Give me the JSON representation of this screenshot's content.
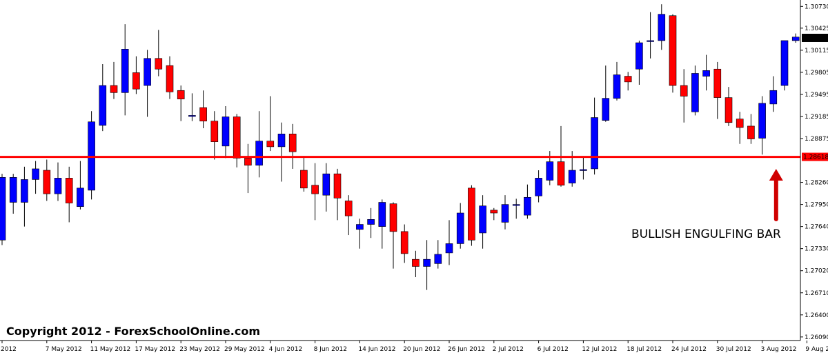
{
  "colors": {
    "bull": "#0000ff",
    "bear": "#ff0000",
    "wick": "#000000",
    "level_line": "#ff0000",
    "current_price_bg": "#000000",
    "current_price_text": "#ffffff",
    "level_tag_bg": "#ff0000",
    "level_tag_text": "#ffffff",
    "arrow": "#d00000"
  },
  "copyright": "Copyright 2012 - ForexSchoolOnline.com",
  "annotation": "BULLISH ENGULFING BAR",
  "chart_data": {
    "type": "candlestick",
    "title": "",
    "y_scale": "linear",
    "ylim": [
      1.2604,
      1.3082
    ],
    "grid": false,
    "y_ticks": [
      "1.30730",
      "1.30425",
      "1.30115",
      "1.29805",
      "1.29495",
      "1.29185",
      "1.28875",
      "1.28260",
      "1.27950",
      "1.27640",
      "1.27330",
      "1.27020",
      "1.26710",
      "1.26400",
      "1.26090"
    ],
    "x_ticks": [
      {
        "label": "2012",
        "index": 0
      },
      {
        "label": "7 May 2012",
        "index": 4
      },
      {
        "label": "11 May 2012",
        "index": 8
      },
      {
        "label": "17 May 2012",
        "index": 12
      },
      {
        "label": "23 May 2012",
        "index": 16
      },
      {
        "label": "29 May 2012",
        "index": 20
      },
      {
        "label": "4 Jun 2012",
        "index": 24
      },
      {
        "label": "8 Jun 2012",
        "index": 28
      },
      {
        "label": "14 Jun 2012",
        "index": 32
      },
      {
        "label": "20 Jun 2012",
        "index": 36
      },
      {
        "label": "26 Jun 2012",
        "index": 40
      },
      {
        "label": "2 Jul 2012",
        "index": 44
      },
      {
        "label": "6 Jul 2012",
        "index": 48
      },
      {
        "label": "12 Jul 2012",
        "index": 52
      },
      {
        "label": "18 Jul 2012",
        "index": 56
      },
      {
        "label": "24 Jul 2012",
        "index": 60
      },
      {
        "label": "30 Jul 2012",
        "index": 64
      },
      {
        "label": "3 Aug 2012",
        "index": 68
      },
      {
        "label": "9 Aug 2012",
        "index": 72
      }
    ],
    "support_level": {
      "value": 1.28618,
      "label": "1.28618"
    },
    "current_price": {
      "value": 1.30288,
      "label": "1.30288"
    },
    "candles": [
      {
        "o": 1.2745,
        "h": 1.2838,
        "l": 1.2738,
        "c": 1.2833
      },
      {
        "o": 1.2798,
        "h": 1.2838,
        "l": 1.2782,
        "c": 1.2833
      },
      {
        "o": 1.2798,
        "h": 1.2848,
        "l": 1.2764,
        "c": 1.283
      },
      {
        "o": 1.283,
        "h": 1.2856,
        "l": 1.281,
        "c": 1.2845
      },
      {
        "o": 1.2843,
        "h": 1.2858,
        "l": 1.28,
        "c": 1.281
      },
      {
        "o": 1.281,
        "h": 1.2854,
        "l": 1.28,
        "c": 1.2832
      },
      {
        "o": 1.2832,
        "h": 1.2848,
        "l": 1.277,
        "c": 1.2797
      },
      {
        "o": 1.2792,
        "h": 1.2856,
        "l": 1.2788,
        "c": 1.2818
      },
      {
        "o": 1.2815,
        "h": 1.2926,
        "l": 1.2802,
        "c": 1.2911
      },
      {
        "o": 1.2906,
        "h": 1.2992,
        "l": 1.2898,
        "c": 1.2962
      },
      {
        "o": 1.2962,
        "h": 1.2995,
        "l": 1.2943,
        "c": 1.2952
      },
      {
        "o": 1.2952,
        "h": 1.3048,
        "l": 1.292,
        "c": 1.3013
      },
      {
        "o": 1.298,
        "h": 1.3003,
        "l": 1.295,
        "c": 1.2957
      },
      {
        "o": 1.2962,
        "h": 1.3012,
        "l": 1.2918,
        "c": 1.3
      },
      {
        "o": 1.3,
        "h": 1.304,
        "l": 1.2975,
        "c": 1.2985
      },
      {
        "o": 1.299,
        "h": 1.3003,
        "l": 1.2943,
        "c": 1.2953
      },
      {
        "o": 1.2955,
        "h": 1.2962,
        "l": 1.2912,
        "c": 1.2943
      },
      {
        "o": 1.292,
        "h": 1.2951,
        "l": 1.2912,
        "c": 1.292
      },
      {
        "o": 1.2931,
        "h": 1.2955,
        "l": 1.2902,
        "c": 1.2912
      },
      {
        "o": 1.2912,
        "h": 1.2926,
        "l": 1.2858,
        "c": 1.2883
      },
      {
        "o": 1.2877,
        "h": 1.2933,
        "l": 1.286,
        "c": 1.2918
      },
      {
        "o": 1.2918,
        "h": 1.2922,
        "l": 1.2847,
        "c": 1.286
      },
      {
        "o": 1.286,
        "h": 1.288,
        "l": 1.2811,
        "c": 1.285
      },
      {
        "o": 1.285,
        "h": 1.2926,
        "l": 1.2833,
        "c": 1.2884
      },
      {
        "o": 1.2884,
        "h": 1.2947,
        "l": 1.287,
        "c": 1.2876
      },
      {
        "o": 1.2876,
        "h": 1.291,
        "l": 1.2827,
        "c": 1.2894
      },
      {
        "o": 1.2894,
        "h": 1.2908,
        "l": 1.2845,
        "c": 1.2869
      },
      {
        "o": 1.2843,
        "h": 1.2863,
        "l": 1.2813,
        "c": 1.2818
      },
      {
        "o": 1.2822,
        "h": 1.2853,
        "l": 1.2773,
        "c": 1.281
      },
      {
        "o": 1.2808,
        "h": 1.2853,
        "l": 1.2785,
        "c": 1.2838
      },
      {
        "o": 1.2838,
        "h": 1.2845,
        "l": 1.2773,
        "c": 1.2804
      },
      {
        "o": 1.28,
        "h": 1.2808,
        "l": 1.2752,
        "c": 1.2779
      },
      {
        "o": 1.276,
        "h": 1.2775,
        "l": 1.2733,
        "c": 1.2767
      },
      {
        "o": 1.2767,
        "h": 1.279,
        "l": 1.2748,
        "c": 1.2774
      },
      {
        "o": 1.2764,
        "h": 1.2802,
        "l": 1.2733,
        "c": 1.2798
      },
      {
        "o": 1.2796,
        "h": 1.2798,
        "l": 1.2705,
        "c": 1.2757
      },
      {
        "o": 1.2757,
        "h": 1.2767,
        "l": 1.2713,
        "c": 1.2726
      },
      {
        "o": 1.2718,
        "h": 1.273,
        "l": 1.2693,
        "c": 1.2708
      },
      {
        "o": 1.2708,
        "h": 1.2745,
        "l": 1.2675,
        "c": 1.2718
      },
      {
        "o": 1.2712,
        "h": 1.2745,
        "l": 1.2705,
        "c": 1.2725
      },
      {
        "o": 1.2727,
        "h": 1.2773,
        "l": 1.271,
        "c": 1.274
      },
      {
        "o": 1.274,
        "h": 1.2797,
        "l": 1.2733,
        "c": 1.2783
      },
      {
        "o": 1.2818,
        "h": 1.2822,
        "l": 1.2737,
        "c": 1.2745
      },
      {
        "o": 1.2755,
        "h": 1.2808,
        "l": 1.2733,
        "c": 1.2793
      },
      {
        "o": 1.2787,
        "h": 1.279,
        "l": 1.2773,
        "c": 1.2783
      },
      {
        "o": 1.277,
        "h": 1.2808,
        "l": 1.276,
        "c": 1.2795
      },
      {
        "o": 1.2795,
        "h": 1.2803,
        "l": 1.2775,
        "c": 1.2795
      },
      {
        "o": 1.278,
        "h": 1.2823,
        "l": 1.2775,
        "c": 1.2805
      },
      {
        "o": 1.2807,
        "h": 1.2843,
        "l": 1.2798,
        "c": 1.2832
      },
      {
        "o": 1.2829,
        "h": 1.287,
        "l": 1.2822,
        "c": 1.2855
      },
      {
        "o": 1.2855,
        "h": 1.2905,
        "l": 1.282,
        "c": 1.2822
      },
      {
        "o": 1.2825,
        "h": 1.287,
        "l": 1.282,
        "c": 1.2843
      },
      {
        "o": 1.2844,
        "h": 1.2862,
        "l": 1.283,
        "c": 1.2844
      },
      {
        "o": 1.2845,
        "h": 1.2945,
        "l": 1.2837,
        "c": 1.2917
      },
      {
        "o": 1.2913,
        "h": 1.299,
        "l": 1.2911,
        "c": 1.2944
      },
      {
        "o": 1.2944,
        "h": 1.2995,
        "l": 1.2941,
        "c": 1.2977
      },
      {
        "o": 1.2975,
        "h": 1.2981,
        "l": 1.2955,
        "c": 1.2967
      },
      {
        "o": 1.2985,
        "h": 1.3025,
        "l": 1.2963,
        "c": 1.3022
      },
      {
        "o": 1.3025,
        "h": 1.3065,
        "l": 1.3,
        "c": 1.3025
      },
      {
        "o": 1.3025,
        "h": 1.3076,
        "l": 1.3012,
        "c": 1.3062
      },
      {
        "o": 1.306,
        "h": 1.3062,
        "l": 1.2952,
        "c": 1.2962
      },
      {
        "o": 1.2962,
        "h": 1.2985,
        "l": 1.291,
        "c": 1.2947
      },
      {
        "o": 1.2925,
        "h": 1.299,
        "l": 1.292,
        "c": 1.2979
      },
      {
        "o": 1.2975,
        "h": 1.3005,
        "l": 1.2955,
        "c": 1.2983
      },
      {
        "o": 1.2985,
        "h": 1.2995,
        "l": 1.2915,
        "c": 1.2945
      },
      {
        "o": 1.2945,
        "h": 1.296,
        "l": 1.2905,
        "c": 1.291
      },
      {
        "o": 1.2915,
        "h": 1.2925,
        "l": 1.288,
        "c": 1.2903
      },
      {
        "o": 1.2905,
        "h": 1.2922,
        "l": 1.288,
        "c": 1.2887
      },
      {
        "o": 1.2888,
        "h": 1.2947,
        "l": 1.2865,
        "c": 1.2937
      },
      {
        "o": 1.2936,
        "h": 1.2975,
        "l": 1.2925,
        "c": 1.2955
      },
      {
        "o": 1.2962,
        "h": 1.3022,
        "l": 1.2955,
        "c": 1.3025
      },
      {
        "o": 1.3025,
        "h": 1.3035,
        "l": 1.3022,
        "c": 1.303
      }
    ]
  }
}
